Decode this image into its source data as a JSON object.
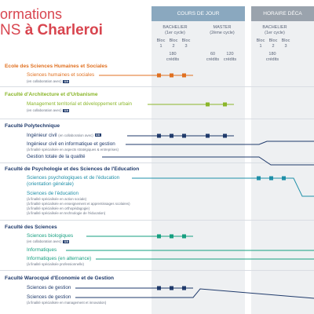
{
  "header": {
    "title_line1": "ormations",
    "title_line2_prefix": "NS",
    "title_line2_city": "à Charleroi"
  },
  "columns": {
    "jour_label": "COURS DE JOUR",
    "decale_label": "HORAIRE DÉCA",
    "bachelier_label": "BACHELIER",
    "bachelier_cycle": "(1er cycle)",
    "master_label": "MASTER",
    "master_cycle": "(2ème cycle)",
    "bloc1": "Bloc 1",
    "bloc2": "Bloc 2",
    "bloc3": "Bloc 3",
    "b_credits": "180 crédits",
    "m60": "60 crédits",
    "m120": "120 crédits",
    "bachelier_label2": "BACHELIER",
    "bachelier_cycle2": "(1er cycle)",
    "bloc1b": "Bloc 1",
    "bloc2b": "Bloc 2",
    "bloc3b": "Bloc 3",
    "b_credits2": "180 crédits"
  },
  "faculties": [
    {
      "name": "Ecole des Sciences Humaines et Sociales",
      "color": "#e07020",
      "programs": [
        {
          "name": "Sciences humaines et sociales",
          "note": "(en collaboration avec)",
          "badge": "UA"
        }
      ]
    },
    {
      "name": "Faculté d'Architecture et d'Urbanisme",
      "color": "#8ab62a",
      "programs": [
        {
          "name": "Management territorial et développement urbain",
          "note": "(en collaboration avec)",
          "badge": "UA"
        }
      ]
    },
    {
      "name": "Faculté Polytechnique",
      "color": "#1f3a6b",
      "programs": [
        {
          "name": "Ingénieur civil",
          "note": "(en collaboration avec)",
          "badge": "UA"
        },
        {
          "name": "Ingénieur civil en informatique et gestion",
          "note": "(à finalité spécialisée en aspects stratégiques & entreprises)"
        },
        {
          "name": "Gestion totale de la qualité"
        }
      ]
    },
    {
      "name": "Faculté de Psychologie et des Sciences de l'Education",
      "color": "#1f8fa8",
      "programs": [
        {
          "name": "Sciences psychologiques et de l'éducation",
          "sub": "(orientation générale)"
        },
        {
          "name": "Sciences de l'éducation",
          "notes": [
            "(à finalité spécialisée en action sociale)",
            "(à finalité spécialisée en enseignement et apprentissages scolaires)",
            "(à finalité spécialisée en orthopédagogie)",
            "(à finalité spécialisée en technologie de l'éducation)"
          ]
        }
      ]
    },
    {
      "name": "Faculté des Sciences",
      "color": "#169f80",
      "programs": [
        {
          "name": "Sciences biologiques",
          "note": "(en collaboration avec)",
          "badge": "UA"
        },
        {
          "name": "Informatiques"
        },
        {
          "name": "Informatiques (en alternance)",
          "note": "(à finalité spécialisée professionnelle)"
        }
      ]
    },
    {
      "name": "Faculté Warocqué d'Economie et de Gestion",
      "color": "#1f3a6b",
      "programs": [
        {
          "name": "Sciences de gestion"
        },
        {
          "name": "Sciences de gestion",
          "note": "(à finalité spécialisée en management et innovation)"
        }
      ]
    }
  ],
  "colors": {
    "header_band": "#8aa8bf",
    "header_band2": "#9aa3ad",
    "title": "#d8454f",
    "navy": "#1f3a6b"
  }
}
